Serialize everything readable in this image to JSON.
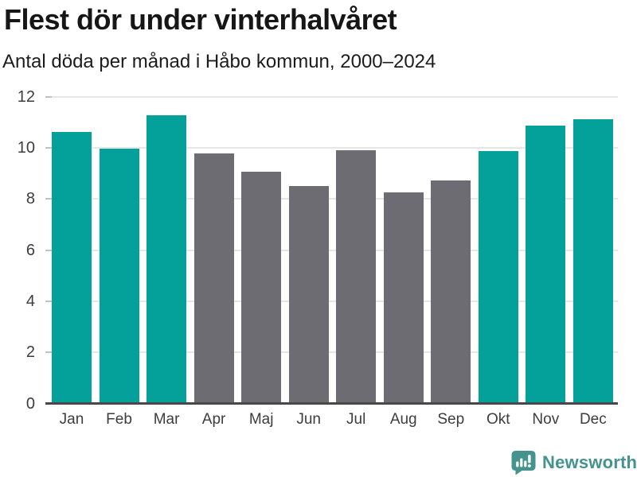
{
  "header": {
    "title": "Flest dör under vinterhalvåret",
    "subtitle": "Antal döda per månad i Håbo kommun, 2000–2024"
  },
  "chart_data": {
    "type": "bar",
    "title": "Flest dör under vinterhalvåret",
    "subtitle": "Antal döda per månad i Håbo kommun, 2000–2024",
    "categories": [
      "Jan",
      "Feb",
      "Mar",
      "Apr",
      "Maj",
      "Jun",
      "Jul",
      "Aug",
      "Sep",
      "Okt",
      "Nov",
      "Dec"
    ],
    "values": [
      10.6,
      9.95,
      11.25,
      9.75,
      9.05,
      8.5,
      9.9,
      8.25,
      8.7,
      9.85,
      10.85,
      11.1
    ],
    "highlighted": [
      true,
      true,
      true,
      false,
      false,
      false,
      false,
      false,
      false,
      true,
      true,
      true
    ],
    "xlabel": "",
    "ylabel": "",
    "ylim": [
      0,
      12
    ],
    "yticks": [
      0,
      2,
      4,
      6,
      8,
      10,
      12
    ],
    "grid": true,
    "legend": "none",
    "colors": {
      "winter_highlight": "#03A199",
      "summer_muted": "#6C6C72",
      "gridline": "#e6e6e6",
      "axis_line": "#48484b",
      "tick_label": "#3d3d3d"
    }
  },
  "footer": {
    "brand": "Newsworthy",
    "logo_icon": "bar-chart-speech-bubble-icon",
    "brand_color": "#44938D"
  }
}
